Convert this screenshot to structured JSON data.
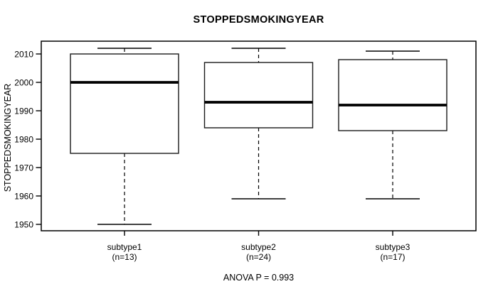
{
  "chart_data": {
    "type": "boxplot",
    "title": "STOPPEDSMOKINGYEAR",
    "ylabel": "STOPPEDSMOKINGYEAR",
    "footer": "ANOVA P = 0.993",
    "ylim": [
      1947.75,
      2014.5
    ],
    "yticks": [
      1950,
      1960,
      1970,
      1980,
      1990,
      2000,
      2010
    ],
    "grid": false,
    "legend": "none",
    "colors": {
      "line": "#000000",
      "frame": "#000000",
      "box_fill": "#ffffff",
      "background": "#ffffff"
    },
    "groups": [
      {
        "label": "subtype1",
        "sublabel": "(n=13)",
        "n": 13,
        "whisker_low": 1950,
        "q1": 1975,
        "median": 2000,
        "q3": 2010,
        "whisker_high": 2012
      },
      {
        "label": "subtype2",
        "sublabel": "(n=24)",
        "n": 24,
        "whisker_low": 1959,
        "q1": 1984,
        "median": 1993,
        "q3": 2007,
        "whisker_high": 2012
      },
      {
        "label": "subtype3",
        "sublabel": "(n=17)",
        "n": 17,
        "whisker_low": 1959,
        "q1": 1983,
        "median": 1992,
        "q3": 2008,
        "whisker_high": 2011
      }
    ]
  }
}
